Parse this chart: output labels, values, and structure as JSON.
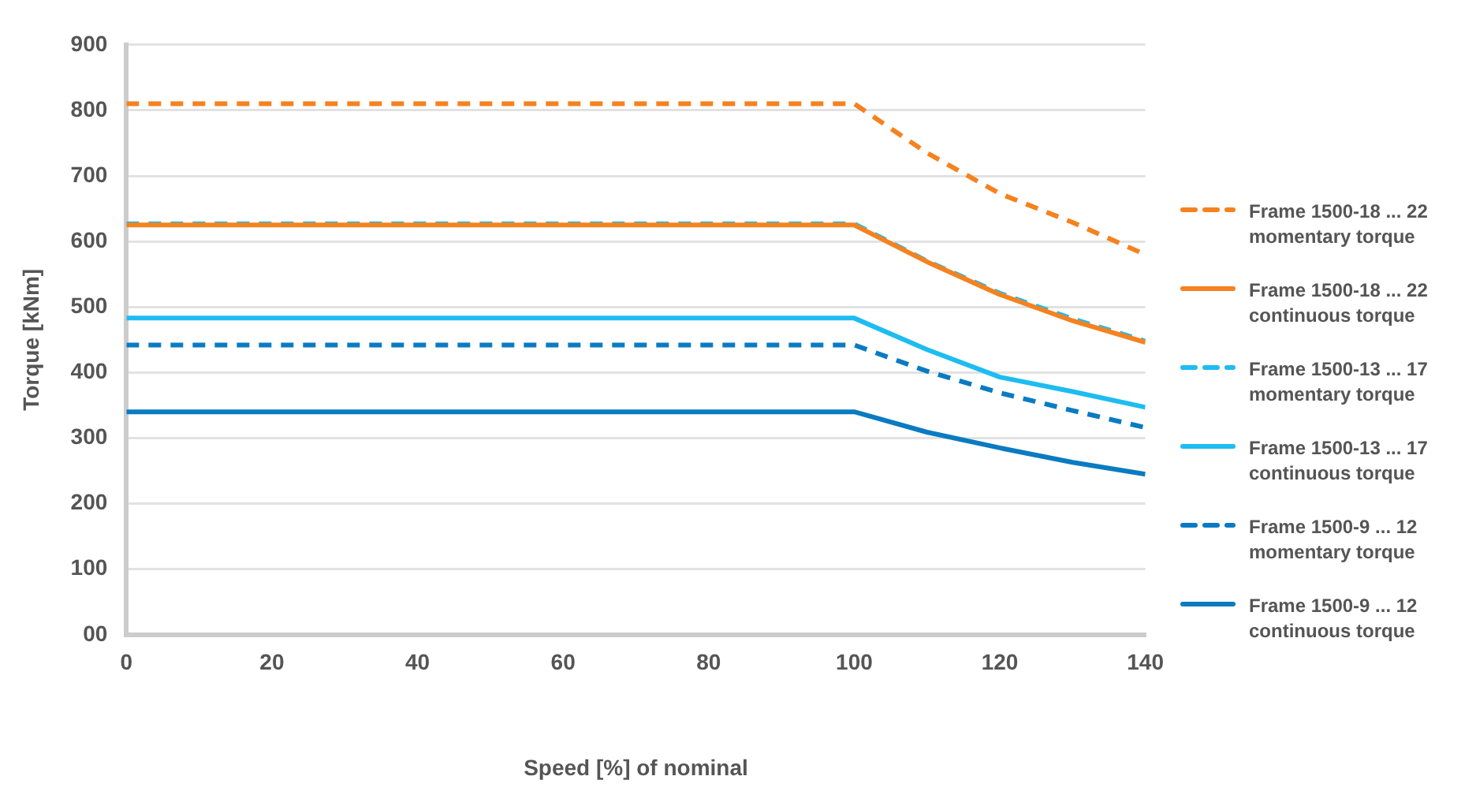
{
  "chart_data": {
    "type": "line",
    "xlabel": "Speed [%] of nominal",
    "ylabel": "Torque [kNm]",
    "x": [
      0,
      100,
      110,
      120,
      130,
      140
    ],
    "xlim": [
      0,
      140
    ],
    "xticks": [
      0,
      20,
      40,
      60,
      80,
      100,
      120,
      140
    ],
    "ylim": [
      0,
      900
    ],
    "yticks": [
      {
        "value": 0,
        "label": "00"
      },
      100,
      200,
      300,
      400,
      500,
      600,
      700,
      800,
      900
    ],
    "grid": "y",
    "legend": "right",
    "marker": "none",
    "series": [
      {
        "name": "Frame 1500-18 ... 22 momentary torque",
        "color": "#f5821f",
        "line_style": "dashed",
        "values": [
          810,
          810,
          735,
          673,
          629,
          580
        ]
      },
      {
        "name": "Frame 1500-18 ... 22 continuous torque",
        "color": "#f5821f",
        "line_style": "solid",
        "values": [
          625,
          625,
          569,
          519,
          479,
          446
        ]
      },
      {
        "name": "Frame 1500-13 ... 17 momentary torque",
        "color": "#1ebcf0",
        "line_style": "dashed",
        "values": [
          627,
          627,
          570,
          521,
          482,
          448
        ]
      },
      {
        "name": "Frame 1500-13 ... 17 continuous torque",
        "color": "#1ebcf0",
        "line_style": "solid",
        "values": [
          483,
          483,
          435,
          393,
          371,
          347
        ]
      },
      {
        "name": "Frame 1500-9 ... 12 momentary torque",
        "color": "#0a7bc1",
        "line_style": "dashed",
        "values": [
          442,
          442,
          402,
          369,
          342,
          316
        ]
      },
      {
        "name": "Frame 1500-9 ... 12 continuous torque",
        "color": "#0a7bc1",
        "line_style": "solid",
        "values": [
          340,
          340,
          309,
          285,
          263,
          245
        ]
      }
    ]
  }
}
